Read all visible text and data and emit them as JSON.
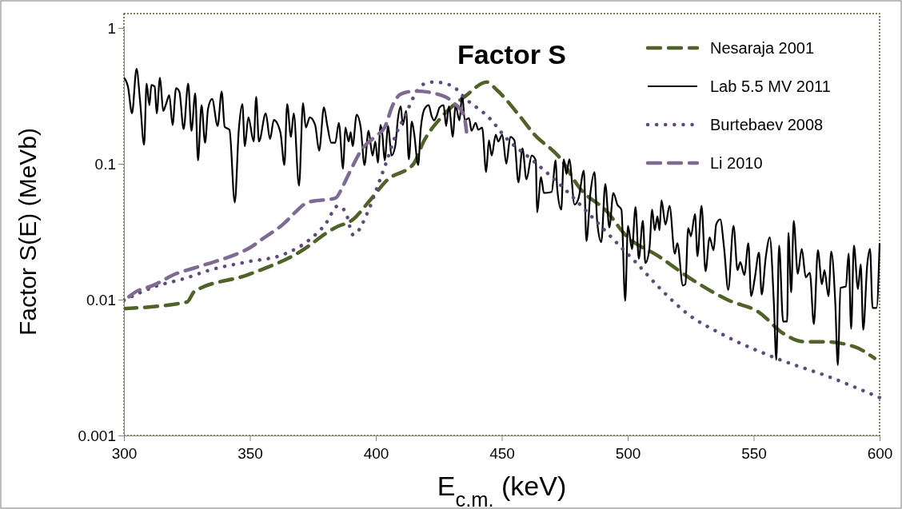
{
  "chart_data": {
    "type": "line",
    "title": "Factor S",
    "xlabel": "E$_{c.m.}$ (keV)",
    "ylabel": "Factor S(E) (MeVb)",
    "log": "y",
    "legend": "top right",
    "xlim": [
      300,
      600
    ],
    "xticks": [
      300,
      350,
      400,
      450,
      500,
      550,
      600
    ],
    "ylim": [
      0.001,
      1
    ],
    "yticks": [
      0.001,
      0.01,
      0.1,
      1
    ],
    "series": [
      {
        "name": "Nesaraja 2001",
        "color": "#4f6228",
        "line_style": "dashed",
        "x": [
          300,
          325,
          328,
          349,
          369,
          384,
          391,
          397,
          404.5,
          415,
          419,
          426,
          436,
          444,
          448,
          457,
          463,
          473,
          481,
          492,
          499,
          512,
          527,
          540,
          552,
          562,
          570,
          578,
          590,
          598
        ],
        "values": [
          0.0086,
          0.0096,
          0.0115,
          0.0152,
          0.022,
          0.034,
          0.039,
          0.052,
          0.076,
          0.1,
          0.146,
          0.22,
          0.32,
          0.4,
          0.35,
          0.226,
          0.164,
          0.111,
          0.066,
          0.044,
          0.03,
          0.021,
          0.0135,
          0.0099,
          0.0081,
          0.0056,
          0.0049,
          0.0049,
          0.0045,
          0.0037
        ]
      },
      {
        "name": "Lab 5.5 MV 2011",
        "color": "#000000",
        "line_style": "solid",
        "x": [
          300,
          301.6,
          303.2,
          305,
          306.4,
          308,
          309,
          310.1,
          310.9,
          312.2,
          313,
          314.3,
          315.6,
          316.7,
          318,
          319.3,
          320.7,
          322,
          323.7,
          325.5,
          326.8,
          328.3,
          329.4,
          330.8,
          332.2,
          333.4,
          335,
          337.2,
          338.8,
          340,
          341.9,
          344,
          345.6,
          347,
          348,
          349.4,
          351.5,
          352.5,
          353.6,
          356.3,
          358,
          359.5,
          362.1,
          363.7,
          364.8,
          366.3,
          367.4,
          369.5,
          371.1,
          372.2,
          373.8,
          375.9,
          377.5,
          379.4,
          380.7,
          382.3,
          383.9,
          385.3,
          387,
          387.9,
          389.2,
          390,
          390.8,
          392.4,
          394,
          395.5,
          397.1,
          398.7,
          399.8,
          400.8,
          401.9,
          402.6,
          403.5,
          404.9,
          406.2,
          407.7,
          408.8,
          409.9,
          410.7,
          412,
          413.1,
          414.3,
          415.2,
          416.8,
          417.8,
          419.4,
          421,
          422.1,
          423.1,
          424.2,
          425.3,
          426.9,
          427.9,
          429,
          430.6,
          431.6,
          433.2,
          434.3,
          435.3,
          437,
          438,
          439.6,
          440.7,
          442.2,
          443.8,
          444.9,
          446,
          447.6,
          448.6,
          450.2,
          451.8,
          453.4,
          455,
          456.6,
          458.2,
          459.8,
          461.9,
          463.5,
          464,
          465.6,
          466.7,
          469.8,
          471.4,
          472,
          473.6,
          474.6,
          475.7,
          476.8,
          478.9,
          480.5,
          482.6,
          483.6,
          485.2,
          486.8,
          487.9,
          489.5,
          491.1,
          492.7,
          494.3,
          495.9,
          497.5,
          499,
          500.1,
          501.7,
          503.1,
          504.4,
          506,
          507,
          508.6,
          509.7,
          510.7,
          511.8,
          512.6,
          513.4,
          515,
          516.6,
          518.7,
          519.7,
          521.9,
          522.9,
          524,
          525.1,
          526.7,
          527.7,
          529.3,
          530.9,
          532.5,
          534.1,
          535.1,
          536.7,
          538.3,
          539.9,
          542,
          543.6,
          544.7,
          546.3,
          547.9,
          549,
          550.5,
          552.1,
          553.2,
          554.8,
          556.4,
          558,
          559,
          560.1,
          561.7,
          563.3,
          563.8,
          564.9,
          565.9,
          567.5,
          569.1,
          570.7,
          572.3,
          573.9,
          575.5,
          577.1,
          578.1,
          579.7,
          580.8,
          582.4,
          583.4,
          584.5,
          586.6,
          587.7,
          588.7,
          589.8,
          591.4,
          592.5,
          593.5,
          595.1,
          596.2,
          597.2,
          598.8,
          600
        ],
        "values": [
          0.43,
          0.37,
          0.235,
          0.5,
          0.29,
          0.138,
          0.39,
          0.27,
          0.38,
          0.37,
          0.235,
          0.43,
          0.245,
          0.275,
          0.32,
          0.193,
          0.36,
          0.34,
          0.18,
          0.39,
          0.175,
          0.33,
          0.106,
          0.27,
          0.143,
          0.255,
          0.3,
          0.19,
          0.34,
          0.187,
          0.178,
          0.052,
          0.178,
          0.275,
          0.135,
          0.22,
          0.146,
          0.31,
          0.146,
          0.235,
          0.152,
          0.21,
          0.171,
          0.098,
          0.275,
          0.158,
          0.235,
          0.069,
          0.28,
          0.185,
          0.22,
          0.193,
          0.125,
          0.26,
          0.193,
          0.143,
          0.143,
          0.2,
          0.092,
          0.185,
          0.146,
          0.171,
          0.135,
          0.23,
          0.185,
          0.098,
          0.175,
          0.115,
          0.146,
          0.102,
          0.193,
          0.164,
          0.106,
          0.19,
          0.115,
          0.135,
          0.217,
          0.265,
          0.193,
          0.245,
          0.108,
          0.205,
          0.168,
          0.098,
          0.178,
          0.255,
          0.27,
          0.226,
          0.209,
          0.226,
          0.26,
          0.27,
          0.19,
          0.265,
          0.158,
          0.27,
          0.209,
          0.323,
          0.209,
          0.217,
          0.175,
          0.2,
          0.178,
          0.185,
          0.087,
          0.149,
          0.115,
          0.164,
          0.146,
          0.164,
          0.1,
          0.158,
          0.149,
          0.073,
          0.13,
          0.077,
          0.115,
          0.106,
          0.044,
          0.08,
          0.061,
          0.062,
          0.106,
          0.066,
          0.046,
          0.108,
          0.084,
          0.108,
          0.05,
          0.056,
          0.089,
          0.027,
          0.061,
          0.087,
          0.037,
          0.0265,
          0.071,
          0.034,
          0.061,
          0.05,
          0.046,
          0.0098,
          0.035,
          0.0236,
          0.048,
          0.02,
          0.038,
          0.0186,
          0.0236,
          0.046,
          0.0324,
          0.041,
          0.0324,
          0.054,
          0.0357,
          0.049,
          0.0218,
          0.026,
          0.0127,
          0.013,
          0.0337,
          0.0293,
          0.0427,
          0.0209,
          0.049,
          0.0162,
          0.0287,
          0.0231,
          0.0357,
          0.039,
          0.0236,
          0.0118,
          0.035,
          0.0165,
          0.0189,
          0.0152,
          0.026,
          0.0106,
          0.0146,
          0.0222,
          0.0109,
          0.0205,
          0.0287,
          0.0096,
          0.0036,
          0.025,
          0.0069,
          0.0069,
          0.031,
          0.0113,
          0.038,
          0.0155,
          0.0236,
          0.0146,
          0.0158,
          0.0066,
          0.0231,
          0.013,
          0.0165,
          0.0106,
          0.0226,
          0.0095,
          0.0033,
          0.0122,
          0.0125,
          0.0218,
          0.0061,
          0.025,
          0.012,
          0.0182,
          0.006,
          0.0182,
          0.0236,
          0.0087,
          0.0087,
          0.026
        ]
      },
      {
        "name": "Burtebaev 2008",
        "color": "#604a7b",
        "line_style": "dotted",
        "x": [
          300,
          313,
          324,
          334,
          349,
          363,
          373,
          380,
          385,
          388,
          391,
          397,
          401,
          404.5,
          407.6,
          412,
          415,
          419,
          423,
          430,
          436,
          445,
          452,
          462,
          473.6,
          484,
          498,
          503,
          513,
          523.6,
          538,
          559,
          580,
          600
        ],
        "values": [
          0.0099,
          0.0126,
          0.0143,
          0.0165,
          0.019,
          0.0214,
          0.027,
          0.036,
          0.049,
          0.044,
          0.03,
          0.045,
          0.071,
          0.107,
          0.158,
          0.234,
          0.31,
          0.386,
          0.4,
          0.377,
          0.297,
          0.218,
          0.153,
          0.107,
          0.069,
          0.044,
          0.0236,
          0.019,
          0.012,
          0.0079,
          0.0055,
          0.0037,
          0.0027,
          0.0019
        ]
      },
      {
        "name": "Li 2010",
        "color": "#7f6a93",
        "line_style": "dashed",
        "x": [
          302,
          305,
          311,
          321,
          327,
          333,
          344,
          350,
          355,
          364,
          368,
          373,
          384,
          387,
          389.5,
          394.6,
          400,
          403.5,
          406.7,
          410,
          416,
          427,
          431,
          435,
          436
        ],
        "values": [
          0.0105,
          0.0115,
          0.0126,
          0.0156,
          0.0169,
          0.0183,
          0.0214,
          0.0241,
          0.028,
          0.037,
          0.044,
          0.052,
          0.056,
          0.069,
          0.086,
          0.129,
          0.16,
          0.185,
          0.27,
          0.327,
          0.343,
          0.315,
          0.28,
          0.226,
          0.172
        ]
      }
    ]
  }
}
